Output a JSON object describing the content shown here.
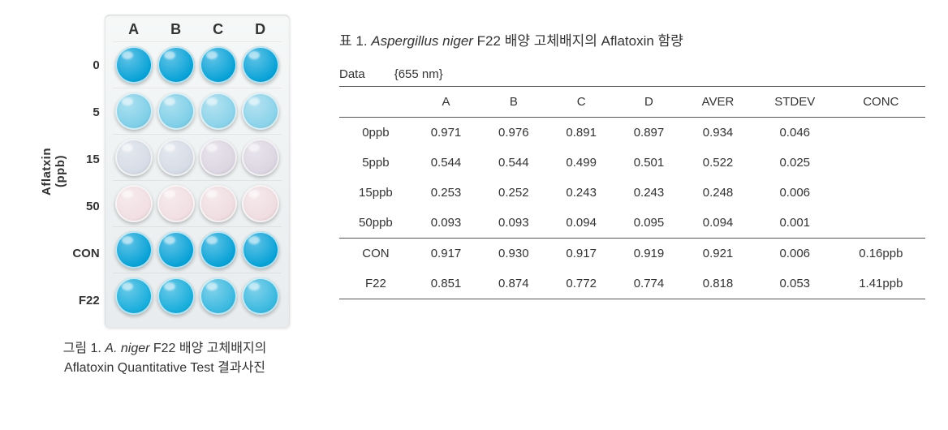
{
  "figure": {
    "y_axis_label": "Aflatxin\n(ppb)",
    "col_headers": [
      "A",
      "B",
      "C",
      "D"
    ],
    "row_labels": [
      "0",
      "5",
      "15",
      "50",
      "CON",
      "F22"
    ],
    "well_colors": [
      [
        "#0aa3d8",
        "#0aa3d8",
        "#0aa3d8",
        "#0aa3d8"
      ],
      [
        "#7fcfe8",
        "#7fcfe8",
        "#8bd3ea",
        "#8bd3ea"
      ],
      [
        "#d6dce6",
        "#d6dce6",
        "#dcd6e2",
        "#dcd6e2"
      ],
      [
        "#f1dfe3",
        "#f1dfe3",
        "#efdde1",
        "#efdde1"
      ],
      [
        "#0aa3d8",
        "#0aa3d8",
        "#0aa3d8",
        "#0aa3d8"
      ],
      [
        "#19aedc",
        "#19aedc",
        "#3bb9e0",
        "#3bb9e0"
      ]
    ],
    "caption_prefix": "그림 1. ",
    "caption_italic": "A. niger",
    "caption_rest": " F22 배양 고체배지의\nAflatoxin Quantitative Test 결과사진"
  },
  "table": {
    "title_prefix": "표 1. ",
    "title_italic": "Aspergillus niger",
    "title_rest": " F22 배양 고체배지의 Aflatoxin 함량",
    "data_label": "Data",
    "data_value": "{655 nm}",
    "columns": [
      "",
      "A",
      "B",
      "C",
      "D",
      "AVER",
      "STDEV",
      "CONC"
    ],
    "rows": [
      {
        "label": "0ppb",
        "A": "0.971",
        "B": "0.976",
        "C": "0.891",
        "D": "0.897",
        "AVER": "0.934",
        "STDEV": "0.046",
        "CONC": ""
      },
      {
        "label": "5ppb",
        "A": "0.544",
        "B": "0.544",
        "C": "0.499",
        "D": "0.501",
        "AVER": "0.522",
        "STDEV": "0.025",
        "CONC": ""
      },
      {
        "label": "15ppb",
        "A": "0.253",
        "B": "0.252",
        "C": "0.243",
        "D": "0.243",
        "AVER": "0.248",
        "STDEV": "0.006",
        "CONC": ""
      },
      {
        "label": "50ppb",
        "A": "0.093",
        "B": "0.093",
        "C": "0.094",
        "D": "0.095",
        "AVER": "0.094",
        "STDEV": "0.001",
        "CONC": "",
        "section_end": true
      },
      {
        "label": "CON",
        "A": "0.917",
        "B": "0.930",
        "C": "0.917",
        "D": "0.919",
        "AVER": "0.921",
        "STDEV": "0.006",
        "CONC": "0.16ppb"
      },
      {
        "label": "F22",
        "A": "0.851",
        "B": "0.874",
        "C": "0.772",
        "D": "0.774",
        "AVER": "0.818",
        "STDEV": "0.053",
        "CONC": "1.41ppb"
      }
    ]
  },
  "style": {
    "background": "#ffffff",
    "text_color": "#333333",
    "rule_color": "#555555",
    "title_fontsize": 17,
    "body_fontsize": 15,
    "caption_fontsize": 16
  }
}
